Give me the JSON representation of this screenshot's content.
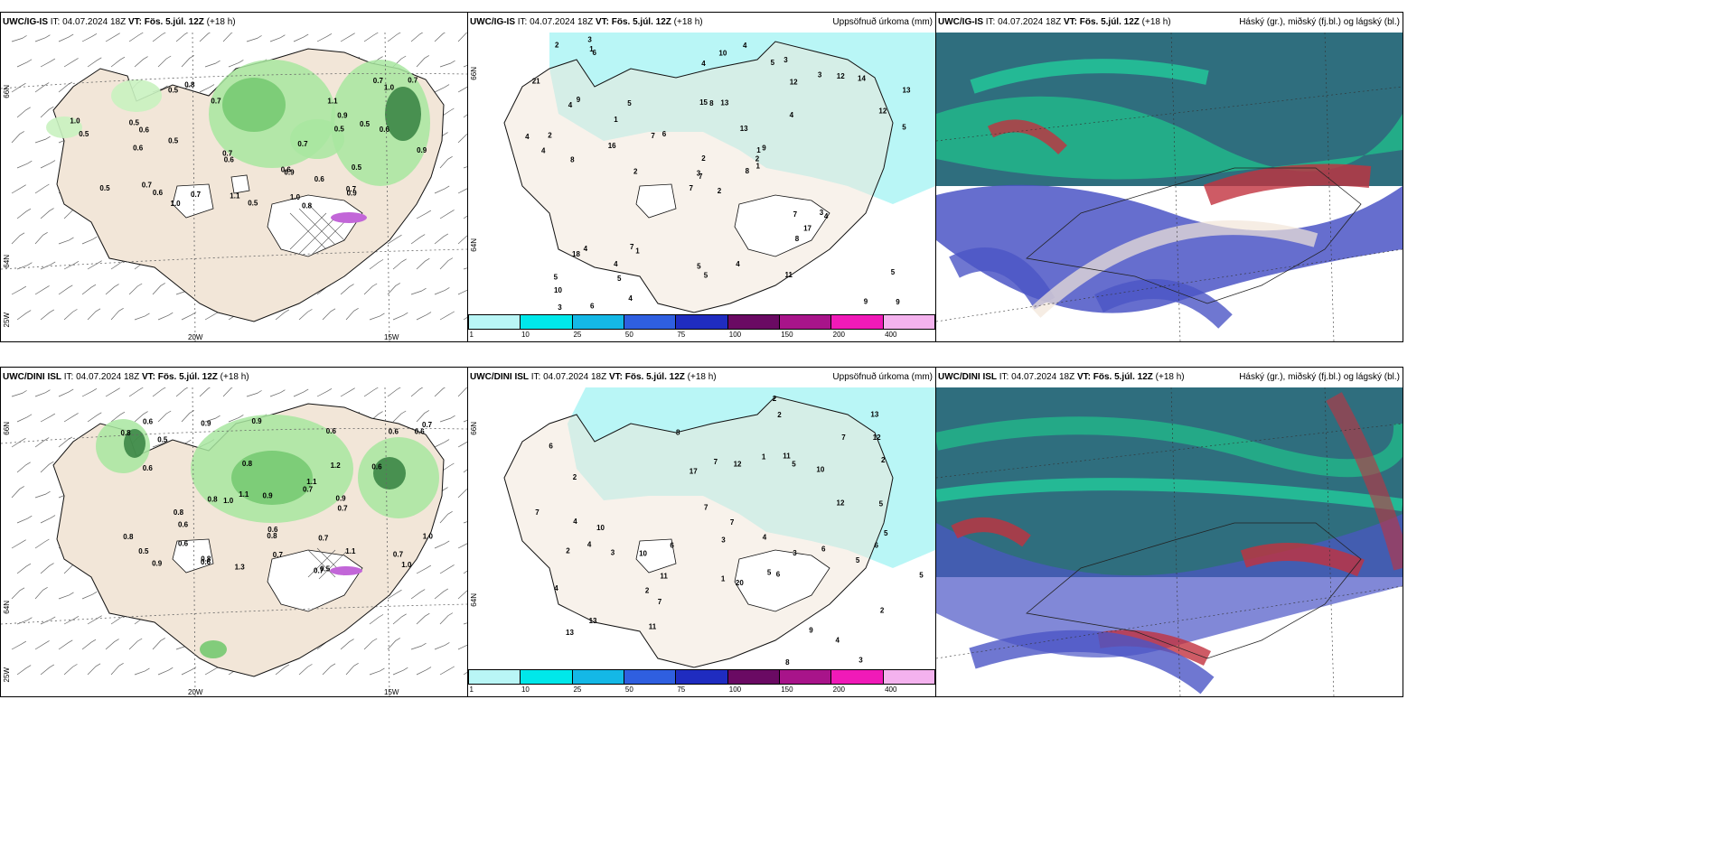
{
  "panels": {
    "tl": {
      "model": "UWC/IG-IS",
      "it_label": "IT:",
      "it": "04.07.2024 18Z",
      "vt_label": "VT:",
      "vt": "Fös. 5.júl. 12Z",
      "lead": "(+18 h)",
      "right": ""
    },
    "tm": {
      "model": "UWC/IG-IS",
      "it_label": "IT:",
      "it": "04.07.2024 18Z",
      "vt_label": "VT:",
      "vt": "Fös. 5.júl. 12Z",
      "lead": "(+18 h)",
      "right": "Uppsöfnuð úrkoma (mm)"
    },
    "tr": {
      "model": "UWC/IG-IS",
      "it_label": "IT:",
      "it": "04.07.2024 18Z",
      "vt_label": "VT:",
      "vt": "Fös. 5.júl. 12Z",
      "lead": "(+18 h)",
      "right": "Háský (gr.), miðský (fj.bl.) og lágský (bl.)"
    },
    "bl": {
      "model": "UWC/DINI ISL",
      "it_label": "IT:",
      "it": "04.07.2024 18Z",
      "vt_label": "VT:",
      "vt": "Fös. 5.júl. 12Z",
      "lead": "(+18 h)",
      "right": ""
    },
    "bm": {
      "model": "UWC/DINI ISL",
      "it_label": "IT:",
      "it": "04.07.2024 18Z",
      "vt_label": "VT:",
      "vt": "Fös. 5.júl. 12Z",
      "lead": "(+18 h)",
      "right": "Uppsöfnuð úrkoma (mm)"
    },
    "br": {
      "model": "UWC/DINI ISL",
      "it_label": "IT:",
      "it": "04.07.2024 18Z",
      "vt_label": "VT:",
      "vt": "Fös. 5.júl. 12Z",
      "lead": "(+18 h)",
      "right": "Háský (gr.), miðský (fj.bl.) og lágský (bl.)"
    }
  },
  "axes": {
    "lat66": "66N",
    "lat64": "64N",
    "lon20": "20W",
    "lon15": "15W",
    "lon25": "25W"
  },
  "legend": {
    "colors": [
      "#b9f6f6",
      "#00e8ea",
      "#14b8e6",
      "#2f5fe0",
      "#1f2cc0",
      "#6a0a63",
      "#a8148a",
      "#f01ab8",
      "#f4b2ee"
    ],
    "ticks": [
      "1",
      "10",
      "25",
      "50",
      "75",
      "100",
      "150",
      "200",
      "400"
    ]
  },
  "precip_tl": [
    "0.8",
    "0.5",
    "0.7",
    "0.5",
    "0.5",
    "1.0",
    "0.9",
    "0.5",
    "0.6",
    "0.6",
    "0.5",
    "1.0",
    "0.7",
    "0.6",
    "0.5",
    "0.7",
    "0.5",
    "1.0",
    "0.5",
    "0.6",
    "0.7",
    "0.9",
    "1.0",
    "0.9",
    "0.7",
    "0.9",
    "0.6",
    "0.6",
    "0.5",
    "0.7",
    "0.6",
    "0.7",
    "1.1",
    "0.7",
    "0.8",
    "1.1"
  ],
  "precip_bl": [
    "1.3",
    "0.7",
    "0.8",
    "1.1",
    "0.9",
    "0.5",
    "0.8",
    "1.0",
    "0.9",
    "0.8",
    "0.6",
    "0.7",
    "1.1",
    "0.8",
    "0.6",
    "0.7",
    "0.6",
    "0.6",
    "1.0",
    "0.8",
    "0.7",
    "0.7",
    "1.1",
    "0.9",
    "0.6",
    "0.8",
    "0.8",
    "0.6",
    "0.6",
    "0.7",
    "0.9",
    "0.5",
    "0.6",
    "0.6",
    "0.6",
    "0.9",
    "1.0",
    "0.5",
    "1.2",
    "0.7"
  ],
  "accum_tm": [
    "2",
    "4",
    "7",
    "5",
    "1",
    "1",
    "3",
    "13",
    "12",
    "8",
    "6",
    "9",
    "8",
    "13",
    "7",
    "4",
    "6",
    "15",
    "13",
    "4",
    "6",
    "10",
    "5",
    "8",
    "9",
    "4",
    "9",
    "4",
    "4",
    "7",
    "5",
    "3",
    "5",
    "2",
    "5",
    "3",
    "7",
    "9",
    "5",
    "3",
    "4",
    "7",
    "16",
    "8",
    "4",
    "4",
    "2",
    "3",
    "5",
    "1",
    "18",
    "12",
    "21",
    "17",
    "11",
    "4",
    "1",
    "2",
    "4",
    "14",
    "10",
    "2",
    "2",
    "1",
    "12",
    "3",
    "5"
  ],
  "accum_bm": [
    "3",
    "4",
    "5",
    "6",
    "2",
    "2",
    "13",
    "10",
    "10",
    "7",
    "5",
    "4",
    "7",
    "8",
    "4",
    "4",
    "6",
    "7",
    "7",
    "13",
    "13",
    "12",
    "12",
    "5",
    "5",
    "4",
    "3",
    "3",
    "7",
    "12",
    "6",
    "2",
    "2",
    "11",
    "17",
    "5",
    "6",
    "9",
    "7",
    "8",
    "11",
    "20",
    "11",
    "2",
    "6",
    "10",
    "2",
    "2",
    "1",
    "1",
    "3",
    "5"
  ]
}
